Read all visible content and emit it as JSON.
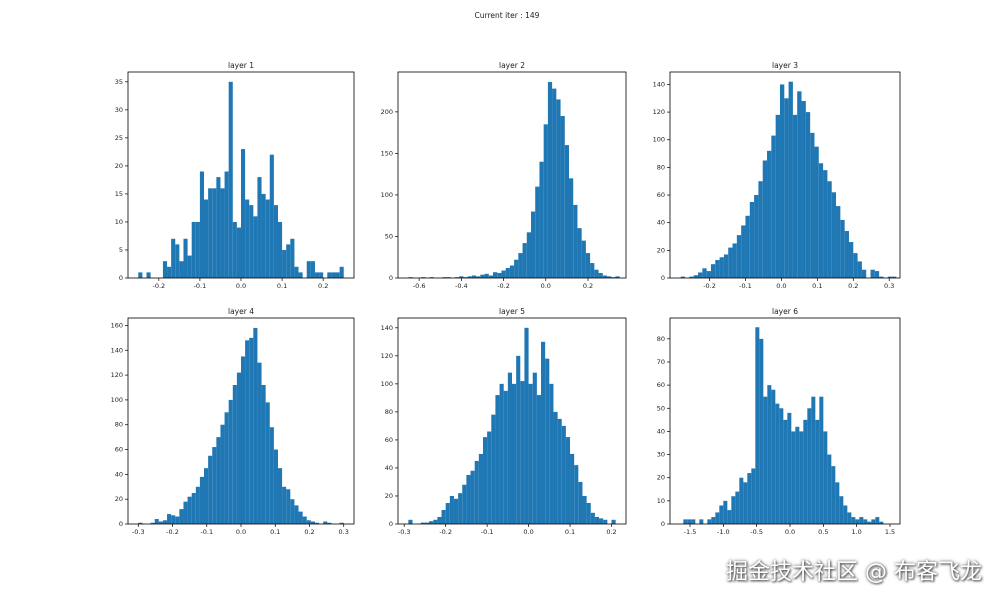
{
  "title": "Current iter : 149",
  "watermark": "掘金技术社区 @ 布客飞龙",
  "chart_data": [
    {
      "type": "histogram",
      "title": "layer 1",
      "color": "#1f77b4",
      "bins": [
        -0.25,
        -0.24,
        -0.23,
        -0.22,
        -0.21,
        -0.2,
        -0.19,
        -0.18,
        -0.17,
        -0.16,
        -0.15,
        -0.14,
        -0.13,
        -0.12,
        -0.11,
        -0.1,
        -0.09,
        -0.08,
        -0.07,
        -0.06,
        -0.05,
        -0.04,
        -0.03,
        -0.02,
        -0.01,
        0,
        0.01,
        0.02,
        0.03,
        0.04,
        0.05,
        0.06,
        0.07,
        0.08,
        0.09,
        0.1,
        0.11,
        0.12,
        0.13,
        0.14,
        0.15,
        0.16,
        0.17,
        0.18,
        0.19,
        0.2,
        0.21,
        0.22,
        0.23,
        0.24,
        0.25
      ],
      "values": [
        1,
        0,
        1,
        0,
        0,
        0,
        3,
        2,
        7,
        6,
        3,
        7,
        4,
        10,
        10,
        19,
        14,
        16,
        16,
        18,
        16,
        19,
        35,
        10,
        9,
        23,
        14,
        13,
        11,
        18,
        15,
        14,
        22,
        13,
        10,
        5,
        6,
        7,
        2,
        1,
        0,
        3,
        3,
        1,
        1,
        0,
        1,
        1,
        1,
        2
      ],
      "xlim": [
        -0.275,
        0.275
      ],
      "xticks": [
        -0.2,
        -0.1,
        {
          "value": 0,
          "label": "0.0"
        },
        0.1,
        0.2
      ],
      "ylim": [
        0,
        36.75
      ],
      "yticks": [
        0,
        5,
        10,
        15,
        20,
        25,
        30,
        35
      ]
    },
    {
      "type": "histogram",
      "title": "layer 2",
      "color": "#1f77b4",
      "bins": [
        -0.65,
        -0.63,
        -0.61,
        -0.59,
        -0.57,
        -0.55,
        -0.53,
        -0.51,
        -0.49,
        -0.47,
        -0.45,
        -0.43,
        -0.41,
        -0.39,
        -0.37,
        -0.35,
        -0.33,
        -0.31,
        -0.29,
        -0.27,
        -0.25,
        -0.23,
        -0.21,
        -0.19,
        -0.17,
        -0.15,
        -0.13,
        -0.11,
        -0.09,
        -0.07,
        -0.05,
        -0.03,
        -0.01,
        0.01,
        0.03,
        0.05,
        0.07,
        0.09,
        0.11,
        0.13,
        0.15,
        0.17,
        0.19,
        0.21,
        0.23,
        0.25,
        0.27,
        0.29,
        0.31,
        0.33,
        0.35
      ],
      "values": [
        1,
        0,
        0,
        1,
        0,
        1,
        0,
        0,
        1,
        1,
        0,
        1,
        2,
        1,
        2,
        3,
        2,
        4,
        5,
        3,
        7,
        6,
        9,
        12,
        15,
        22,
        30,
        42,
        55,
        80,
        110,
        140,
        185,
        236,
        228,
        215,
        195,
        160,
        120,
        88,
        60,
        45,
        30,
        18,
        10,
        6,
        3,
        2,
        1,
        2
      ],
      "xlim": [
        -0.7,
        0.38
      ],
      "xticks": [
        -0.6,
        -0.4,
        -0.2,
        {
          "value": 0,
          "label": "0.0"
        },
        0.2
      ],
      "ylim": [
        0,
        248
      ],
      "yticks": [
        0,
        50,
        100,
        150,
        200
      ]
    },
    {
      "type": "histogram",
      "title": "layer 3",
      "color": "#1f77b4",
      "bins": [
        -0.28,
        -0.268,
        -0.256,
        -0.244,
        -0.232,
        -0.22,
        -0.208,
        -0.196,
        -0.184,
        -0.172,
        -0.16,
        -0.148,
        -0.136,
        -0.124,
        -0.112,
        -0.1,
        -0.088,
        -0.076,
        -0.064,
        -0.052,
        -0.04,
        -0.028,
        -0.016,
        -0.004,
        0.008,
        0.02,
        0.032,
        0.044,
        0.056,
        0.068,
        0.08,
        0.092,
        0.104,
        0.116,
        0.128,
        0.14,
        0.152,
        0.164,
        0.176,
        0.188,
        0.2,
        0.212,
        0.224,
        0.236,
        0.248,
        0.26,
        0.272,
        0.284,
        0.296,
        0.308,
        0.32
      ],
      "values": [
        1,
        0,
        1,
        2,
        4,
        7,
        5,
        10,
        13,
        15,
        17,
        22,
        25,
        31,
        38,
        45,
        55,
        60,
        70,
        85,
        92,
        103,
        118,
        140,
        130,
        142,
        118,
        135,
        128,
        120,
        105,
        95,
        83,
        78,
        70,
        62,
        52,
        42,
        34,
        26,
        18,
        12,
        6,
        0,
        6,
        5,
        1,
        0,
        1,
        1
      ],
      "xlim": [
        -0.31,
        0.33
      ],
      "xticks": [
        -0.2,
        -0.1,
        {
          "value": 0,
          "label": "0.0"
        },
        0.1,
        0.2,
        0.3
      ],
      "ylim": [
        0,
        149
      ],
      "yticks": [
        0,
        20,
        40,
        60,
        80,
        100,
        120,
        140
      ]
    },
    {
      "type": "histogram",
      "title": "layer 4",
      "color": "#1f77b4",
      "bins": [
        -0.3,
        -0.288,
        -0.276,
        -0.264,
        -0.252,
        -0.24,
        -0.228,
        -0.216,
        -0.204,
        -0.192,
        -0.18,
        -0.168,
        -0.156,
        -0.144,
        -0.132,
        -0.12,
        -0.108,
        -0.096,
        -0.084,
        -0.072,
        -0.06,
        -0.048,
        -0.036,
        -0.024,
        -0.012,
        0,
        0.012,
        0.024,
        0.036,
        0.048,
        0.06,
        0.072,
        0.084,
        0.096,
        0.108,
        0.12,
        0.132,
        0.144,
        0.156,
        0.168,
        0.18,
        0.192,
        0.204,
        0.216,
        0.228,
        0.24,
        0.252,
        0.264,
        0.276,
        0.288,
        0.3
      ],
      "values": [
        1,
        0,
        0,
        1,
        4,
        2,
        3,
        8,
        7,
        6,
        12,
        18,
        22,
        25,
        30,
        38,
        45,
        55,
        62,
        70,
        80,
        90,
        100,
        112,
        122,
        135,
        148,
        150,
        158,
        130,
        112,
        98,
        78,
        60,
        45,
        30,
        28,
        20,
        15,
        10,
        6,
        3,
        2,
        1,
        0,
        2,
        1,
        0,
        0,
        1
      ],
      "xlim": [
        -0.33,
        0.33
      ],
      "xticks": [
        -0.3,
        -0.2,
        -0.1,
        {
          "value": 0,
          "label": "0.0"
        },
        0.1,
        0.2,
        0.3
      ],
      "ylim": [
        0,
        166
      ],
      "yticks": [
        0,
        20,
        40,
        60,
        80,
        100,
        120,
        140,
        160
      ]
    },
    {
      "type": "histogram",
      "title": "layer 5",
      "color": "#1f77b4",
      "bins": [
        -0.29,
        -0.28,
        -0.27,
        -0.26,
        -0.25,
        -0.24,
        -0.23,
        -0.22,
        -0.21,
        -0.2,
        -0.19,
        -0.18,
        -0.17,
        -0.16,
        -0.15,
        -0.14,
        -0.13,
        -0.12,
        -0.11,
        -0.1,
        -0.09,
        -0.08,
        -0.07,
        -0.06,
        -0.05,
        -0.04,
        -0.03,
        -0.02,
        -0.01,
        0,
        0.01,
        0.02,
        0.03,
        0.04,
        0.05,
        0.06,
        0.07,
        0.08,
        0.09,
        0.1,
        0.11,
        0.12,
        0.13,
        0.14,
        0.15,
        0.16,
        0.17,
        0.18,
        0.19,
        0.2,
        0.21
      ],
      "values": [
        3,
        0,
        0,
        1,
        1,
        2,
        3,
        5,
        10,
        15,
        20,
        18,
        22,
        28,
        35,
        38,
        45,
        50,
        62,
        66,
        78,
        92,
        100,
        95,
        108,
        100,
        120,
        102,
        140,
        100,
        108,
        92,
        130,
        118,
        100,
        80,
        75,
        70,
        62,
        50,
        42,
        30,
        20,
        15,
        8,
        5,
        4,
        3,
        0,
        3
      ],
      "xlim": [
        -0.315,
        0.235
      ],
      "xticks": [
        -0.3,
        -0.2,
        -0.1,
        {
          "value": 0,
          "label": "0.0"
        },
        0.1,
        0.2
      ],
      "ylim": [
        0,
        147
      ],
      "yticks": [
        0,
        20,
        40,
        60,
        80,
        100,
        120,
        140
      ]
    },
    {
      "type": "histogram",
      "title": "layer 6",
      "color": "#1f77b4",
      "bins": [
        -1.6,
        -1.54,
        -1.48,
        -1.42,
        -1.36,
        -1.3,
        -1.24,
        -1.18,
        -1.12,
        -1.06,
        -1,
        -0.94,
        -0.88,
        -0.82,
        -0.76,
        -0.7,
        -0.64,
        -0.58,
        -0.52,
        -0.46,
        -0.4,
        -0.34,
        -0.28,
        -0.22,
        -0.16,
        -0.1,
        -0.04,
        0.02,
        0.08,
        0.14,
        0.2,
        0.26,
        0.32,
        0.38,
        0.44,
        0.5,
        0.56,
        0.62,
        0.68,
        0.74,
        0.8,
        0.86,
        0.92,
        0.98,
        1.04,
        1.1,
        1.16,
        1.22,
        1.28,
        1.34,
        1.4
      ],
      "values": [
        2,
        2,
        2,
        0,
        2,
        0,
        2,
        3,
        5,
        8,
        10,
        6,
        12,
        14,
        20,
        18,
        22,
        24,
        85,
        80,
        55,
        60,
        58,
        52,
        50,
        45,
        48,
        40,
        42,
        40,
        45,
        50,
        55,
        45,
        55,
        40,
        30,
        25,
        18,
        12,
        8,
        5,
        3,
        2,
        3,
        2,
        1,
        2,
        3,
        1
      ],
      "xlim": [
        -1.8,
        1.65
      ],
      "xticks": [
        -1.5,
        {
          "value": -1,
          "label": "-1.0"
        },
        -0.5,
        {
          "value": 0,
          "label": "0.0"
        },
        0.5,
        {
          "value": 1,
          "label": "1.0"
        },
        1.5
      ],
      "ylim": [
        0,
        89
      ],
      "yticks": [
        0,
        10,
        20,
        30,
        40,
        50,
        60,
        70,
        80
      ]
    }
  ]
}
